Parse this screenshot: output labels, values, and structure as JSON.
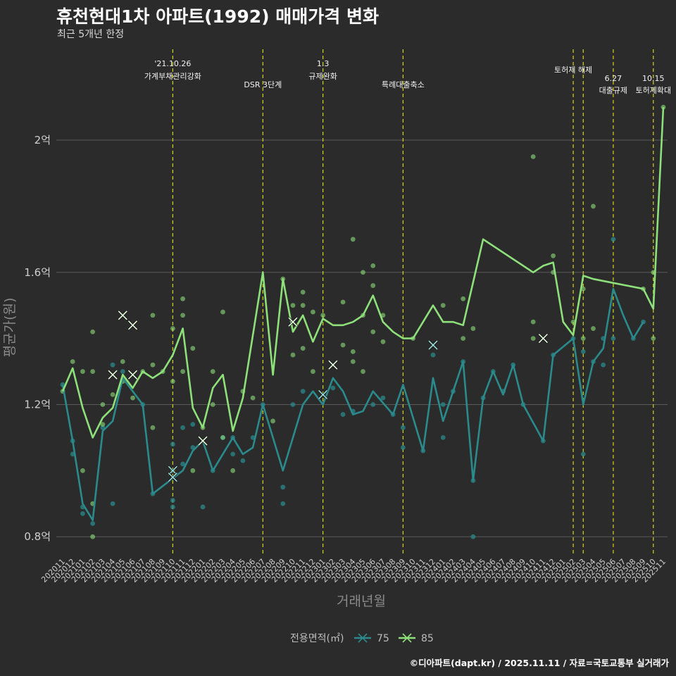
{
  "title": "휴천현대1차 아파트(1992) 매매가격 변화",
  "subtitle": "최근 5개년 한정",
  "footer": "©디아파트(dapt.kr) / 2025.11.11 / 자료=국토교통부 실거래가",
  "colors": {
    "background": "#2b2b2b",
    "grid": "#5a5a5a",
    "s75": "#2a8a8c",
    "s85": "#8ee07a",
    "vline": "#d4d41f"
  },
  "chart_data": {
    "type": "line",
    "title": "휴천현대1차 아파트(1992) 매매가격 변화",
    "xlabel": "거래년월",
    "ylabel": "평균가(원)",
    "ylim": [
      0.745,
      2.275
    ],
    "yticks": [
      0.8,
      1.2,
      1.6,
      2.0
    ],
    "ytick_labels": [
      "0.8억",
      "1.2억",
      "1.6억",
      "2억"
    ],
    "categories": [
      "202011",
      "202012",
      "202101",
      "202102",
      "202103",
      "202104",
      "202105",
      "202106",
      "202107",
      "202108",
      "202109",
      "202110",
      "202111",
      "202112",
      "202201",
      "202202",
      "202203",
      "202204",
      "202205",
      "202206",
      "202207",
      "202208",
      "202209",
      "202210",
      "202211",
      "202212",
      "202301",
      "202302",
      "202303",
      "202304",
      "202305",
      "202306",
      "202307",
      "202308",
      "202309",
      "202310",
      "202311",
      "202312",
      "202401",
      "202402",
      "202403",
      "202404",
      "202405",
      "202406",
      "202407",
      "202408",
      "202409",
      "202410",
      "202411",
      "202412",
      "202501",
      "202502",
      "202503",
      "202504",
      "202505",
      "202506",
      "202507",
      "202508",
      "202509",
      "202510",
      "202511"
    ],
    "legend_title": "전용면적(㎡)",
    "legend_position": "bottom",
    "series": [
      {
        "name": "75",
        "color": "#2a8a8c",
        "x": [
          0,
          1,
          2,
          3,
          4,
          5,
          6,
          8,
          9,
          12,
          13,
          14,
          15,
          17,
          18,
          19,
          20,
          21,
          22,
          24,
          25,
          26,
          27,
          28,
          29,
          30,
          31,
          33,
          34,
          36,
          37,
          38,
          39,
          40,
          41,
          42,
          43,
          44,
          45,
          46,
          48,
          49,
          51,
          52,
          53,
          54,
          55,
          56,
          57,
          58
        ],
        "values": [
          1.26,
          1.09,
          0.9,
          0.85,
          1.12,
          1.15,
          1.28,
          1.2,
          0.93,
          1.0,
          1.06,
          1.09,
          1.0,
          1.1,
          1.05,
          1.07,
          1.2,
          1.1,
          1.0,
          1.2,
          1.24,
          1.2,
          1.28,
          1.24,
          1.17,
          1.18,
          1.24,
          1.17,
          1.26,
          1.06,
          1.28,
          1.15,
          1.24,
          1.33,
          0.97,
          1.22,
          1.3,
          1.23,
          1.32,
          1.2,
          1.09,
          1.35,
          1.4,
          1.2,
          1.33,
          1.37,
          1.55,
          1.47,
          1.4,
          1.45
        ]
      },
      {
        "name": "85",
        "color": "#8ee07a",
        "x": [
          0,
          1,
          2,
          3,
          4,
          5,
          6,
          7,
          8,
          9,
          10,
          11,
          12,
          13,
          14,
          15,
          16,
          17,
          18,
          20,
          21,
          22,
          23,
          24,
          25,
          26,
          27,
          28,
          29,
          30,
          31,
          32,
          33,
          34,
          35,
          37,
          38,
          39,
          40,
          41,
          42,
          47,
          48,
          49,
          50,
          51,
          52,
          53,
          58,
          59,
          60
        ],
        "values": [
          1.24,
          1.31,
          1.19,
          1.1,
          1.16,
          1.19,
          1.29,
          1.25,
          1.3,
          1.28,
          1.3,
          1.35,
          1.43,
          1.19,
          1.13,
          1.25,
          1.29,
          1.12,
          1.22,
          1.6,
          1.29,
          1.58,
          1.42,
          1.47,
          1.39,
          1.46,
          1.44,
          1.44,
          1.45,
          1.47,
          1.53,
          1.45,
          1.42,
          1.4,
          1.4,
          1.5,
          1.45,
          1.45,
          1.44,
          1.57,
          1.7,
          1.6,
          1.62,
          1.63,
          1.45,
          1.41,
          1.59,
          1.58,
          1.55,
          1.49,
          2.1
        ]
      }
    ],
    "scatter_75": [
      [
        0,
        1.26
      ],
      [
        1,
        1.05
      ],
      [
        1,
        1.09
      ],
      [
        2,
        0.87
      ],
      [
        2,
        0.89
      ],
      [
        3,
        0.84
      ],
      [
        4,
        1.13
      ],
      [
        5,
        0.9
      ],
      [
        5,
        1.32
      ],
      [
        6,
        1.3
      ],
      [
        8,
        1.2
      ],
      [
        9,
        0.93
      ],
      [
        11,
        0.91
      ],
      [
        11,
        0.89
      ],
      [
        11,
        1.08
      ],
      [
        12,
        1.13
      ],
      [
        12,
        1.02
      ],
      [
        13,
        1.07
      ],
      [
        13,
        1.14
      ],
      [
        14,
        0.89
      ],
      [
        15,
        1.0
      ],
      [
        16,
        1.1
      ],
      [
        17,
        1.1
      ],
      [
        17,
        1.05
      ],
      [
        18,
        1.03
      ],
      [
        19,
        1.1
      ],
      [
        20,
        1.2
      ],
      [
        22,
        0.95
      ],
      [
        22,
        0.9
      ],
      [
        23,
        1.2
      ],
      [
        24,
        1.24
      ],
      [
        27,
        1.25
      ],
      [
        28,
        1.17
      ],
      [
        29,
        1.18
      ],
      [
        31,
        1.2
      ],
      [
        32,
        1.22
      ],
      [
        33,
        1.17
      ],
      [
        34,
        1.13
      ],
      [
        34,
        1.07
      ],
      [
        36,
        1.06
      ],
      [
        37,
        1.35
      ],
      [
        38,
        1.1
      ],
      [
        38,
        1.2
      ],
      [
        39,
        1.24
      ],
      [
        40,
        1.33
      ],
      [
        41,
        0.97
      ],
      [
        41,
        0.8
      ],
      [
        42,
        1.22
      ],
      [
        43,
        1.3
      ],
      [
        44,
        1.24
      ],
      [
        45,
        1.32
      ],
      [
        46,
        1.2
      ],
      [
        48,
        1.09
      ],
      [
        49,
        1.35
      ],
      [
        51,
        1.4
      ],
      [
        52,
        1.05
      ],
      [
        52,
        1.36
      ],
      [
        53,
        1.33
      ],
      [
        54,
        1.4
      ],
      [
        54,
        1.32
      ],
      [
        55,
        1.7
      ],
      [
        55,
        1.4
      ],
      [
        57,
        1.4
      ],
      [
        58,
        1.45
      ]
    ],
    "scatter_85": [
      [
        0,
        1.24
      ],
      [
        1,
        1.33
      ],
      [
        2,
        1.3
      ],
      [
        2,
        1.0
      ],
      [
        3,
        1.42
      ],
      [
        3,
        1.3
      ],
      [
        3,
        0.9
      ],
      [
        3,
        0.8
      ],
      [
        4,
        1.14
      ],
      [
        4,
        1.2
      ],
      [
        5,
        1.23
      ],
      [
        6,
        1.33
      ],
      [
        6,
        1.27
      ],
      [
        7,
        1.22
      ],
      [
        8,
        1.3
      ],
      [
        9,
        1.47
      ],
      [
        9,
        1.32
      ],
      [
        9,
        1.13
      ],
      [
        10,
        1.3
      ],
      [
        11,
        1.43
      ],
      [
        11,
        1.27
      ],
      [
        11,
        1.0
      ],
      [
        12,
        1.52
      ],
      [
        12,
        1.47
      ],
      [
        12,
        1.3
      ],
      [
        13,
        1.37
      ],
      [
        13,
        1.0
      ],
      [
        14,
        1.13
      ],
      [
        15,
        1.3
      ],
      [
        15,
        1.2
      ],
      [
        16,
        1.48
      ],
      [
        16,
        1.1
      ],
      [
        17,
        1.0
      ],
      [
        18,
        1.24
      ],
      [
        19,
        1.22
      ],
      [
        21,
        1.15
      ],
      [
        22,
        1.58
      ],
      [
        23,
        1.5
      ],
      [
        23,
        1.35
      ],
      [
        24,
        1.37
      ],
      [
        24,
        1.54
      ],
      [
        24,
        1.5
      ],
      [
        25,
        1.48
      ],
      [
        25,
        1.3
      ],
      [
        26,
        1.47
      ],
      [
        28,
        1.51
      ],
      [
        28,
        1.38
      ],
      [
        29,
        1.7
      ],
      [
        29,
        1.36
      ],
      [
        29,
        1.33
      ],
      [
        30,
        1.6
      ],
      [
        30,
        1.47
      ],
      [
        30,
        1.3
      ],
      [
        31,
        1.62
      ],
      [
        31,
        1.56
      ],
      [
        31,
        1.42
      ],
      [
        32,
        1.47
      ],
      [
        32,
        1.39
      ],
      [
        35,
        1.4
      ],
      [
        38,
        1.5
      ],
      [
        40,
        1.52
      ],
      [
        40,
        1.4
      ],
      [
        41,
        1.43
      ],
      [
        47,
        1.95
      ],
      [
        47,
        1.45
      ],
      [
        47,
        1.4
      ],
      [
        49,
        1.65
      ],
      [
        49,
        1.6
      ],
      [
        51,
        1.45
      ],
      [
        52,
        1.55
      ],
      [
        52,
        1.4
      ],
      [
        53,
        1.8
      ],
      [
        53,
        1.43
      ],
      [
        58,
        1.55
      ],
      [
        59,
        1.6
      ],
      [
        59,
        1.4
      ],
      [
        60,
        2.1
      ]
    ],
    "x_markers_75": [
      [
        11,
        1.0
      ],
      [
        11,
        0.98
      ],
      [
        26,
        1.23
      ],
      [
        37,
        1.38
      ],
      [
        48,
        1.4
      ]
    ],
    "x_markers_85": [
      [
        5,
        1.29
      ],
      [
        6,
        1.47
      ],
      [
        7,
        1.44
      ],
      [
        7,
        1.29
      ],
      [
        14,
        1.09
      ],
      [
        23,
        1.45
      ],
      [
        27,
        1.32
      ],
      [
        48,
        1.4
      ]
    ],
    "events": [
      {
        "x": 11,
        "label": "'21.10.26",
        "label2": "가계부채관리강화",
        "row": 1
      },
      {
        "x": 20,
        "label": "DSR 3단계",
        "label2": "",
        "row": 3
      },
      {
        "x": 26,
        "label": "1.3",
        "label2": "규제완화",
        "row": 1
      },
      {
        "x": 34,
        "label": "특례대출축소",
        "label2": "",
        "row": 3
      },
      {
        "x": 51,
        "label": "토허제 해제",
        "label2": "",
        "row": 2
      },
      {
        "x": 52,
        "label": "",
        "label2": "",
        "row": 0
      },
      {
        "x": 55,
        "label": "6.27",
        "label2": "대출규제",
        "row": 4
      },
      {
        "x": 59,
        "label": "10.15",
        "label2": "토허제확대",
        "row": 4
      }
    ]
  }
}
